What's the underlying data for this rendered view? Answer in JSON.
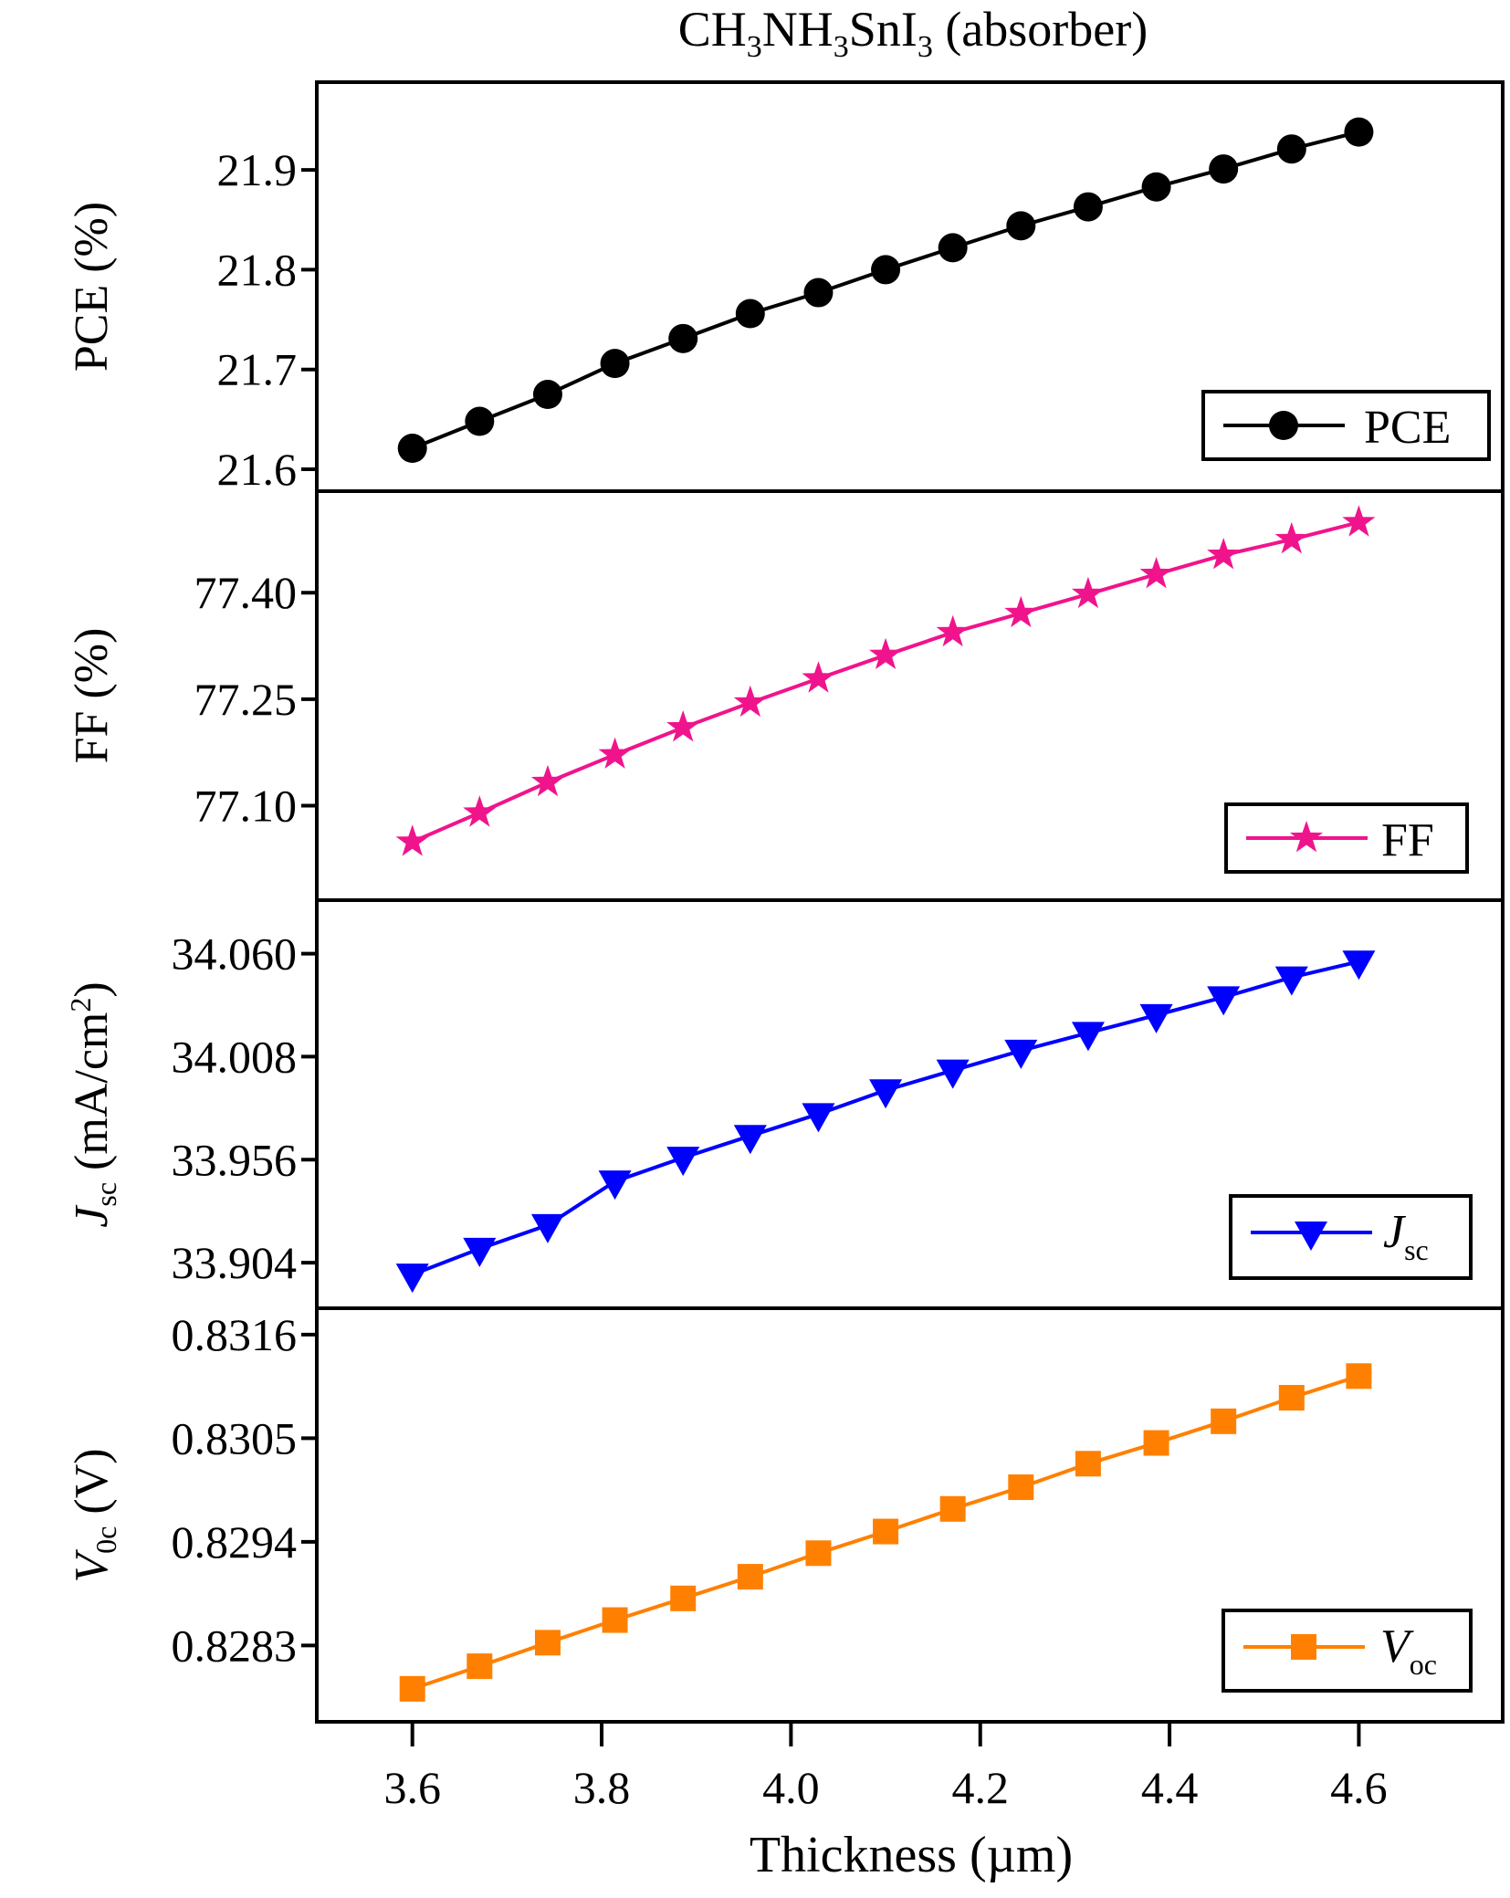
{
  "chart_data": [
    {
      "type": "line",
      "title_parts": [
        "CH",
        "3",
        "NH",
        "3",
        "SnI",
        "3",
        " (absorber)"
      ],
      "ylabel": "PCE (%)",
      "legend": "PCE",
      "color": "#000000",
      "marker": "circle",
      "x": [
        3.6,
        3.671,
        3.743,
        3.814,
        3.886,
        3.957,
        4.029,
        4.1,
        4.171,
        4.243,
        4.314,
        4.386,
        4.457,
        4.529,
        4.6
      ],
      "values": [
        21.621,
        21.648,
        21.675,
        21.706,
        21.731,
        21.756,
        21.777,
        21.8,
        21.822,
        21.844,
        21.863,
        21.883,
        21.901,
        21.921,
        21.938
      ],
      "yticks": [
        "21.6",
        "21.7",
        "21.8",
        "21.9"
      ],
      "ylim": [
        21.578,
        21.988
      ]
    },
    {
      "type": "line",
      "ylabel": "FF (%)",
      "legend": "FF",
      "color": "#f0148c",
      "marker": "star",
      "x": [
        3.6,
        3.671,
        3.743,
        3.814,
        3.886,
        3.957,
        4.029,
        4.1,
        4.171,
        4.243,
        4.314,
        4.386,
        4.457,
        4.529,
        4.6
      ],
      "values": [
        77.049,
        77.09,
        77.133,
        77.172,
        77.21,
        77.245,
        77.279,
        77.312,
        77.344,
        77.371,
        77.398,
        77.426,
        77.453,
        77.475,
        77.499
      ],
      "yticks": [
        "77.10",
        "77.25",
        "77.40"
      ],
      "ylim": [
        76.967,
        77.543
      ]
    },
    {
      "type": "line",
      "ylabel_main": "J",
      "ylabel_sub": "sc",
      "ylabel_rest": " (mA/cm",
      "ylabel_sup": "2",
      "ylabel_end": ")",
      "legend_main": "J",
      "legend_sub": "sc",
      "color": "#0000ff",
      "marker": "triangle-down",
      "x": [
        3.6,
        3.671,
        3.743,
        3.814,
        3.886,
        3.957,
        4.029,
        4.1,
        4.171,
        4.243,
        4.314,
        4.386,
        4.457,
        4.529,
        4.6
      ],
      "values": [
        33.898,
        33.911,
        33.923,
        33.945,
        33.957,
        33.968,
        33.979,
        33.991,
        34.001,
        34.011,
        34.02,
        34.029,
        34.038,
        34.048,
        34.056
      ],
      "yticks": [
        "33.904",
        "33.956",
        "34.008",
        "34.060"
      ],
      "ylim": [
        33.881,
        34.087
      ]
    },
    {
      "type": "line",
      "ylabel_main": "V",
      "ylabel_sub": "0c",
      "ylabel_rest": " (V)",
      "legend_main": "V",
      "legend_sub": "oc",
      "color": "#ff8000",
      "marker": "square",
      "x": [
        3.6,
        3.671,
        3.743,
        3.814,
        3.886,
        3.957,
        4.029,
        4.1,
        4.171,
        4.243,
        4.314,
        4.386,
        4.457,
        4.529,
        4.6
      ],
      "values": [
        0.82784,
        0.82808,
        0.82833,
        0.82857,
        0.8288,
        0.82903,
        0.82928,
        0.82951,
        0.82975,
        0.82998,
        0.83023,
        0.83045,
        0.83068,
        0.83093,
        0.83116
      ],
      "yticks": [
        "0.8283",
        "0.8294",
        "0.8305",
        "0.8316"
      ],
      "ylim": [
        0.82749,
        0.83188
      ],
      "xlabel": "Thickness (µm)",
      "xticks": [
        "3.6",
        "3.8",
        "4.0",
        "4.2",
        "4.4",
        "4.6"
      ],
      "xlim": [
        3.499,
        4.752
      ]
    }
  ]
}
